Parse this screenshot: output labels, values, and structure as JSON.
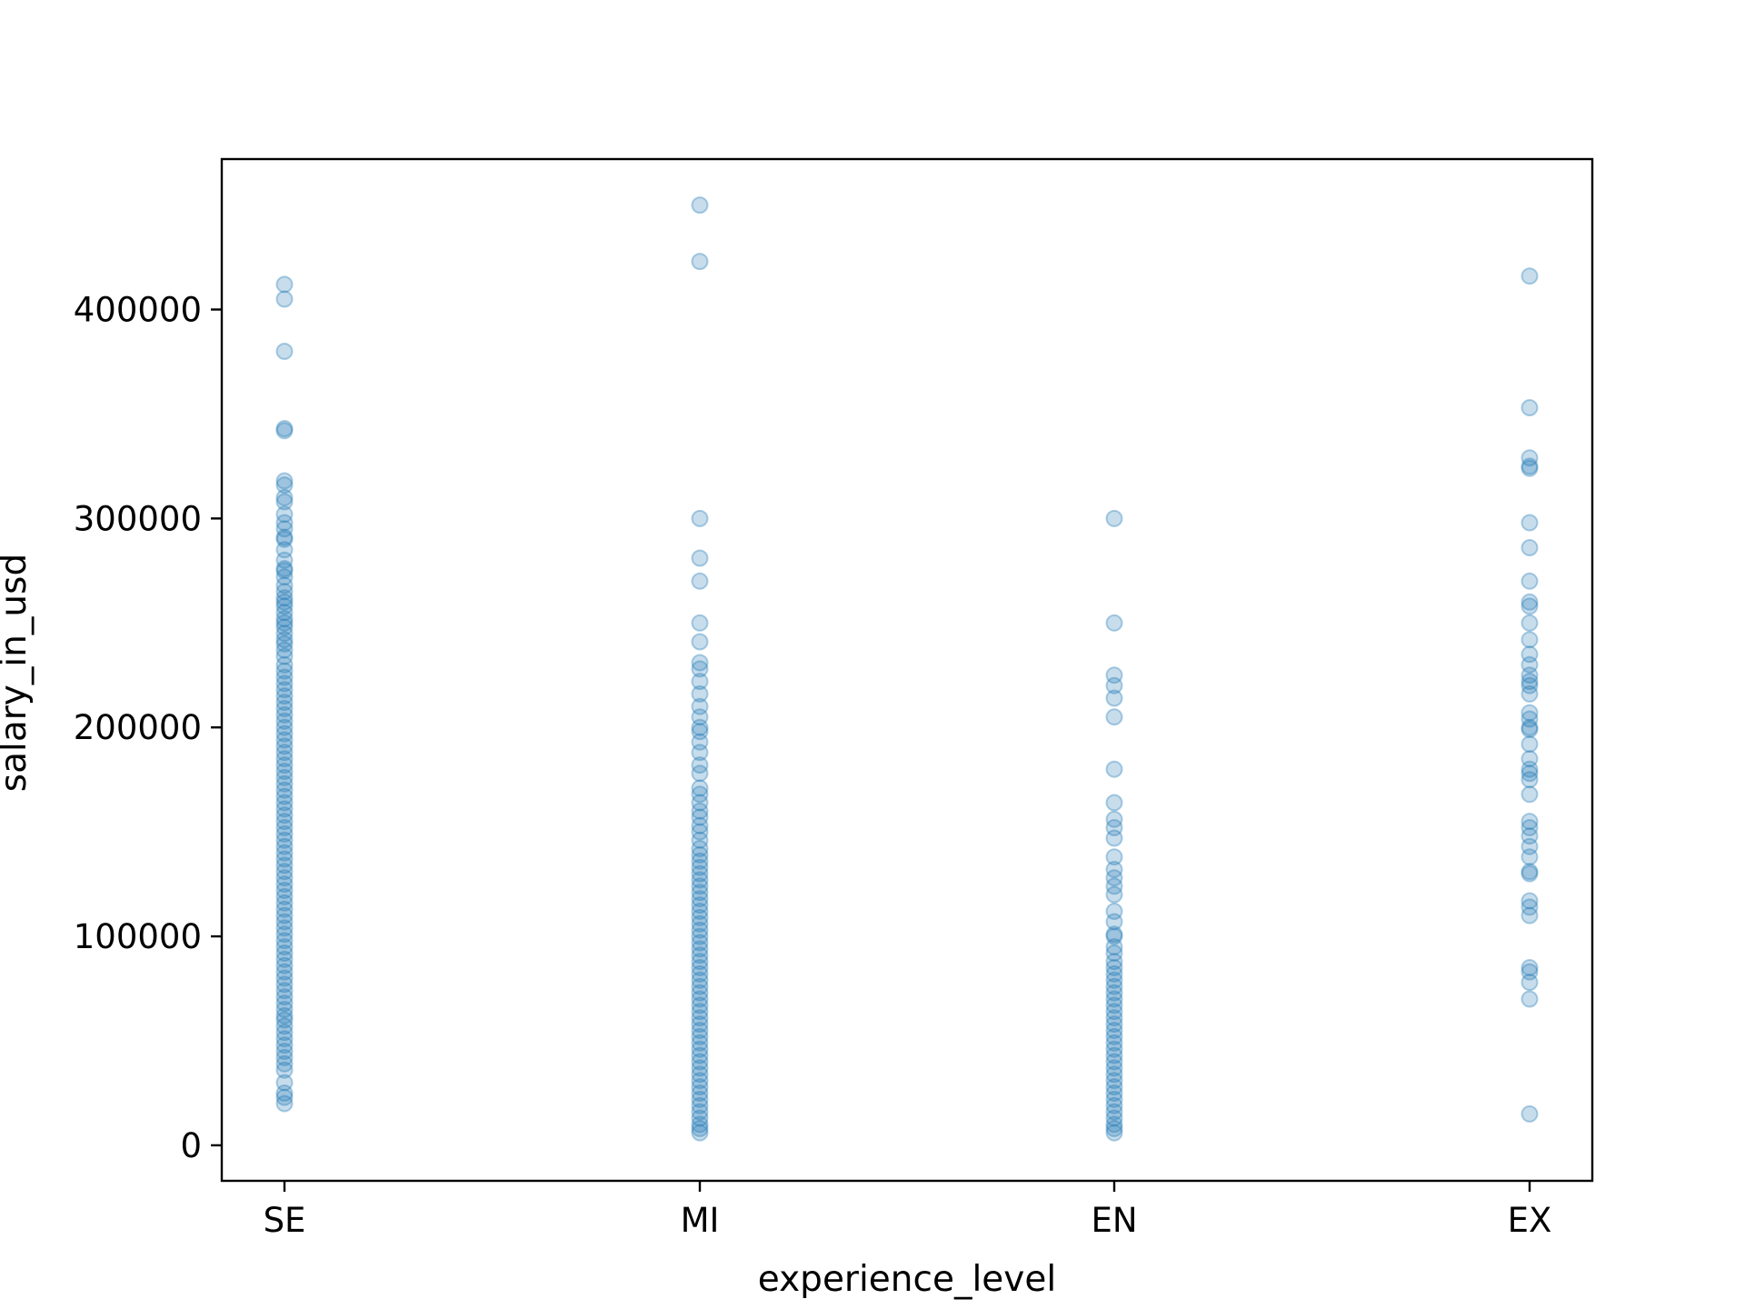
{
  "chart_data": {
    "type": "scatter",
    "title": "",
    "xlabel": "experience_level",
    "ylabel": "salary_in_usd",
    "categories": [
      "SE",
      "MI",
      "EN",
      "EX"
    ],
    "ylim": [
      -17000,
      472000
    ],
    "yticks": [
      0,
      100000,
      200000,
      300000,
      400000
    ],
    "ytick_labels": [
      "0",
      "100000",
      "200000",
      "300000",
      "400000"
    ],
    "grid": false,
    "legend": "none",
    "marker_color": "#1f77b4",
    "marker_alpha": 0.25,
    "points": [
      {
        "category": "SE",
        "y": [
          412000,
          405000,
          380000,
          343000,
          342000,
          318000,
          316000,
          310000,
          308000,
          302000,
          298000,
          295000,
          291000,
          290000,
          285000,
          280000,
          276000,
          275000,
          272000,
          268000,
          265000,
          262000,
          260000,
          258000,
          255000,
          252000,
          250000,
          248000,
          245000,
          242000,
          240000,
          237000,
          234000,
          230000,
          227000,
          224000,
          221000,
          218000,
          215000,
          212000,
          209000,
          206000,
          203000,
          200000,
          197000,
          194000,
          191000,
          188000,
          185000,
          182000,
          179000,
          176000,
          173000,
          170000,
          167000,
          164000,
          161000,
          158000,
          155000,
          152000,
          149000,
          146000,
          143000,
          140000,
          137000,
          134000,
          131000,
          128000,
          125000,
          122000,
          119000,
          116000,
          113000,
          110000,
          107000,
          104000,
          101000,
          98000,
          95000,
          92000,
          89000,
          86000,
          83000,
          80000,
          77000,
          74000,
          71000,
          68000,
          65000,
          62000,
          60000,
          57000,
          54000,
          51000,
          48000,
          45000,
          42000,
          39000,
          36000,
          30000,
          25000,
          23000,
          20000
        ]
      },
      {
        "category": "MI",
        "y": [
          450000,
          423000,
          300000,
          281000,
          270000,
          250000,
          241000,
          231000,
          228000,
          222000,
          216000,
          210000,
          205000,
          200000,
          198000,
          193000,
          188000,
          182000,
          178000,
          171000,
          168000,
          164000,
          160000,
          157000,
          153000,
          150000,
          146000,
          142000,
          139000,
          136000,
          133000,
          130000,
          127000,
          124000,
          121000,
          118000,
          115000,
          112000,
          109000,
          106000,
          103000,
          100000,
          97000,
          94000,
          91000,
          88000,
          85000,
          82000,
          79000,
          76000,
          73000,
          70000,
          67000,
          64000,
          61000,
          58000,
          55000,
          52000,
          49000,
          46000,
          43000,
          40000,
          37000,
          34000,
          31000,
          28000,
          25000,
          22000,
          19000,
          16000,
          13000,
          10000,
          8000,
          6000
        ]
      },
      {
        "category": "EN",
        "y": [
          300000,
          250000,
          225000,
          220000,
          214000,
          205000,
          180000,
          164000,
          156000,
          152000,
          147000,
          138000,
          132000,
          128000,
          124000,
          120000,
          112000,
          107000,
          101000,
          100000,
          95000,
          92000,
          88000,
          85000,
          82000,
          79000,
          76000,
          73000,
          70000,
          67000,
          64000,
          61000,
          58000,
          55000,
          52000,
          49000,
          46000,
          43000,
          40000,
          37000,
          34000,
          31000,
          28000,
          25000,
          22000,
          19000,
          16000,
          13000,
          10000,
          8000,
          6000
        ]
      },
      {
        "category": "EX",
        "y": [
          416000,
          353000,
          329000,
          325000,
          324000,
          298000,
          286000,
          270000,
          260000,
          258000,
          250000,
          242000,
          235000,
          230000,
          225000,
          222000,
          220000,
          216000,
          207000,
          204000,
          200000,
          199000,
          192000,
          185000,
          180000,
          178000,
          175000,
          168000,
          155000,
          152000,
          148000,
          143000,
          138000,
          131000,
          130000,
          117000,
          114000,
          110000,
          85000,
          83000,
          78000,
          70000,
          15000
        ]
      }
    ]
  }
}
